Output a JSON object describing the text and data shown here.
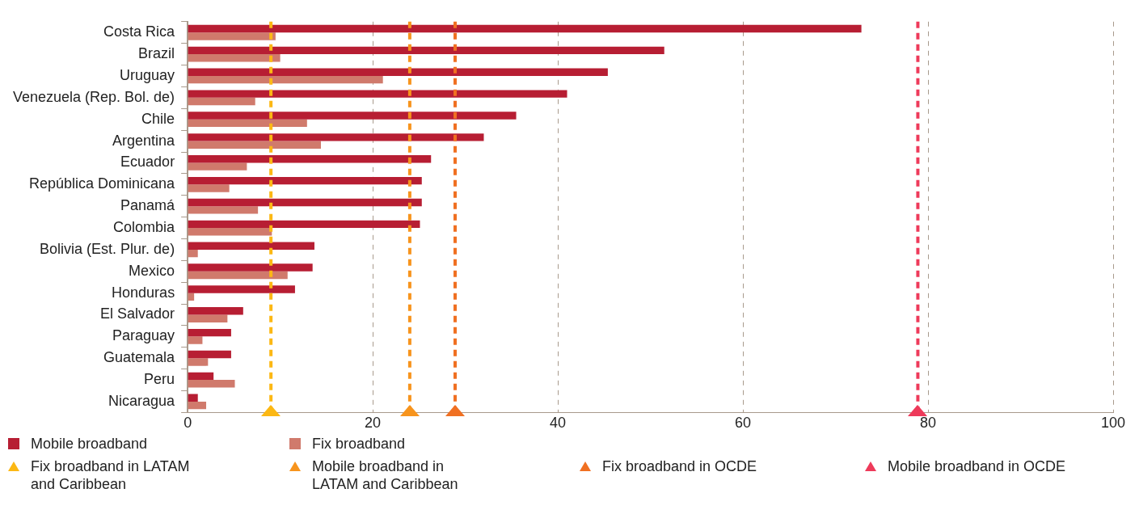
{
  "chart_data": {
    "type": "bar",
    "orientation": "horizontal",
    "categories": [
      "Costa Rica",
      "Brazil",
      "Uruguay",
      "Venezuela (Rep. Bol. de)",
      "Chile",
      "Argentina",
      "Ecuador",
      "República Dominicana",
      "Panamá",
      "Colombia",
      "Bolivia (Est. Plur. de)",
      "Mexico",
      "Honduras",
      "El Salvador",
      "Paraguay",
      "Guatemala",
      "Peru",
      "Nicaragua"
    ],
    "series": [
      {
        "name": "Mobile broadband",
        "color": "#b71e33",
        "values": [
          72.8,
          51.5,
          45.4,
          41.0,
          35.5,
          32.0,
          26.3,
          25.3,
          25.3,
          25.1,
          13.7,
          13.5,
          11.6,
          6.0,
          4.7,
          4.7,
          2.8,
          1.1
        ]
      },
      {
        "name": "Fix broadband",
        "color": "#d07a6c",
        "values": [
          9.5,
          10.0,
          21.1,
          7.3,
          12.9,
          14.4,
          6.4,
          4.5,
          7.6,
          9.1,
          1.1,
          10.8,
          0.7,
          4.3,
          1.6,
          2.2,
          5.1,
          2.0
        ]
      }
    ],
    "xlim": [
      0,
      100
    ],
    "xticks": [
      0,
      20,
      40,
      60,
      80,
      100
    ],
    "grid": "x",
    "legend": "bottom",
    "ref_lines": [
      {
        "axis": "x",
        "value": 9.0,
        "label": "Fix broadband in LATAM and Caribbean",
        "color": "#fcb814",
        "line_style": "dashed"
      },
      {
        "axis": "x",
        "value": 24.0,
        "label": "Mobile broadband in LATAM and Caribbean",
        "color": "#f7941d",
        "line_style": "dashed"
      },
      {
        "axis": "x",
        "value": 28.9,
        "label": "Fix broadband in OCDE",
        "color": "#f07022",
        "line_style": "dashed"
      },
      {
        "axis": "x",
        "value": 78.9,
        "label": "Mobile broadband in OCDE",
        "color": "#ee3a5a",
        "line_style": "dashed"
      }
    ]
  }
}
